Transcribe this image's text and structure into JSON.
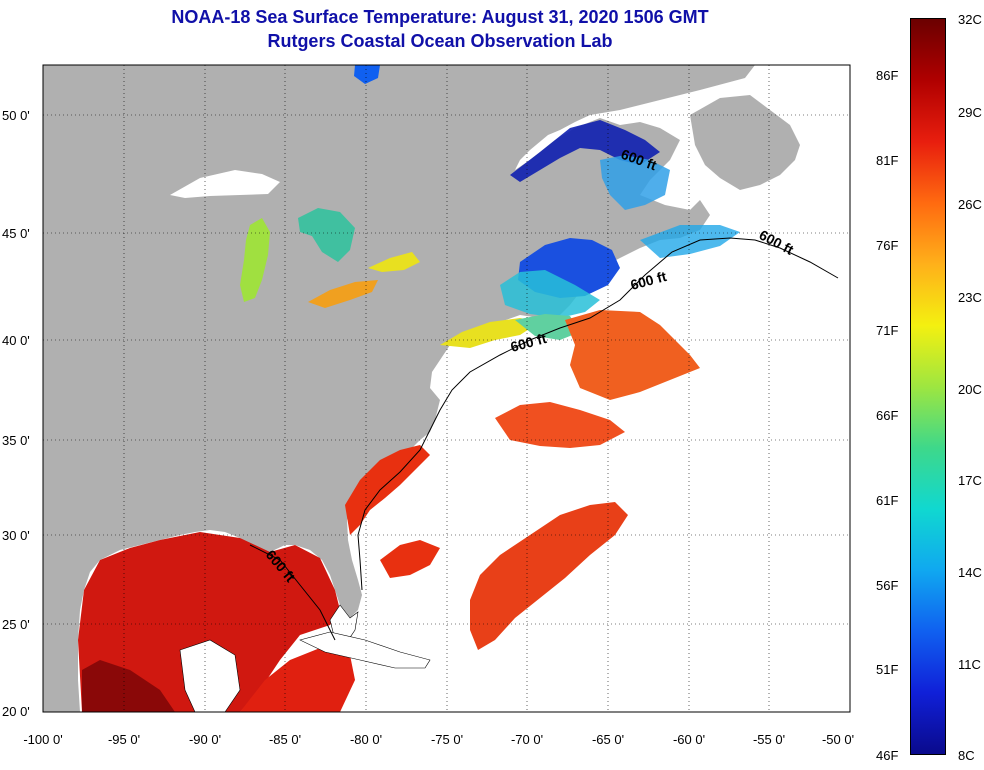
{
  "header": {
    "title": "NOAA-18 Sea Surface Temperature:  August 31, 2020 1506 GMT",
    "subtitle": "Rutgers Coastal Ocean Observation Lab"
  },
  "map": {
    "lat_labels": [
      "50 0'",
      "45 0'",
      "40 0'",
      "35 0'",
      "30 0'",
      "25 0'",
      "20 0'"
    ],
    "lon_labels": [
      "-100 0'",
      "-95 0'",
      "-90 0'",
      "-85 0'",
      "-80 0'",
      "-75 0'",
      "-70 0'",
      "-65 0'",
      "-60 0'",
      "-55 0'",
      "-50 0'"
    ],
    "contour_labels": [
      "600 ft",
      "600 ft",
      "600 ft",
      "600 ft",
      "600 ft"
    ],
    "land_color": "#b0b0b0",
    "no_data_color": "#ffffff"
  },
  "colorbar": {
    "fahrenheit": [
      "86F",
      "81F",
      "76F",
      "71F",
      "66F",
      "61F",
      "56F",
      "51F",
      "46F"
    ],
    "celsius": [
      "32C",
      "29C",
      "26C",
      "23C",
      "20C",
      "17C",
      "14C",
      "11C",
      "8C"
    ],
    "gradient_colors": [
      "#6b0000",
      "#b00000",
      "#e81e0e",
      "#ff6a10",
      "#ffb01a",
      "#f4f010",
      "#9ee640",
      "#3ed88a",
      "#10d8d0",
      "#10a8f0",
      "#1060f0",
      "#1020d8",
      "#0a0a8c"
    ]
  }
}
